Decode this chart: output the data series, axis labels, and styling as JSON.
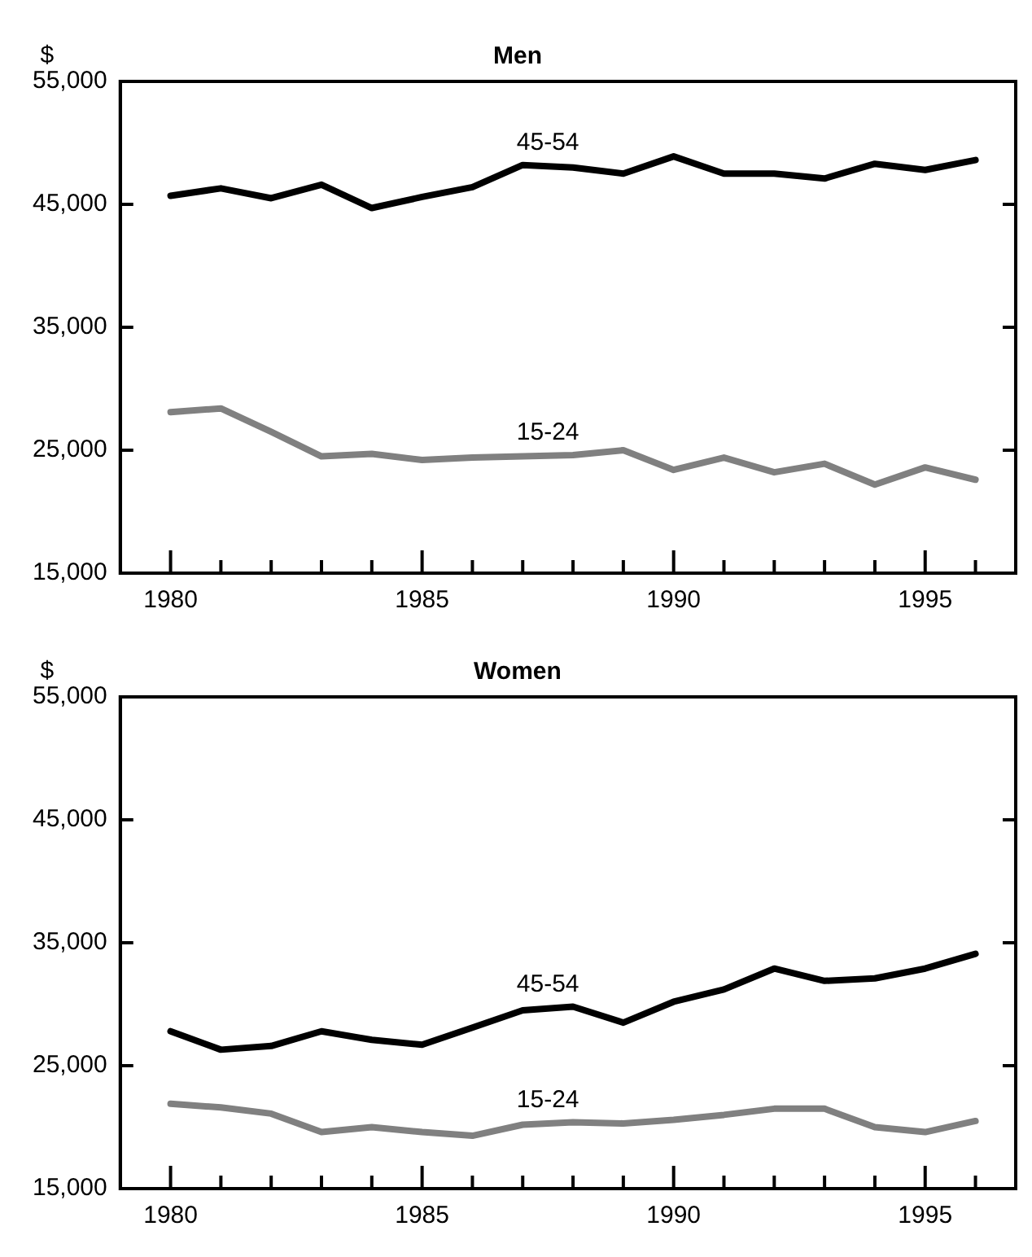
{
  "chart_data": [
    {
      "type": "line",
      "title": "Men",
      "ylabel": "$",
      "x": [
        1980,
        1981,
        1982,
        1983,
        1984,
        1985,
        1986,
        1987,
        1988,
        1989,
        1990,
        1991,
        1992,
        1993,
        1994,
        1995,
        1996
      ],
      "xlim": [
        1979,
        1996.8
      ],
      "xticks": [
        1980,
        {
          "value": 1981,
          "label": null
        },
        {
          "value": 1982,
          "label": null
        },
        {
          "value": 1983,
          "label": null
        },
        {
          "value": 1984,
          "label": null
        },
        1985,
        {
          "value": 1986,
          "label": null
        },
        {
          "value": 1987,
          "label": null
        },
        {
          "value": 1988,
          "label": null
        },
        {
          "value": 1989,
          "label": null
        },
        1990,
        {
          "value": 1991,
          "label": null
        },
        {
          "value": 1992,
          "label": null
        },
        {
          "value": 1993,
          "label": null
        },
        {
          "value": 1994,
          "label": null
        },
        1995,
        {
          "value": 1996,
          "label": null
        }
      ],
      "ylim": [
        15000,
        55000
      ],
      "yticks": [
        {
          "value": 15000,
          "label": "15,000"
        },
        {
          "value": 25000,
          "label": "25,000"
        },
        {
          "value": 35000,
          "label": "35,000"
        },
        {
          "value": 45000,
          "label": "45,000"
        },
        {
          "value": 55000,
          "label": "55,000"
        }
      ],
      "grid": false,
      "legend": false,
      "marker": "none",
      "line_style": "solid",
      "series": [
        {
          "name": "45-54",
          "color": "#000000",
          "values": [
            45700,
            46300,
            45500,
            46600,
            44700,
            45600,
            46400,
            48200,
            48000,
            47500,
            48900,
            47500,
            47500,
            47100,
            48300,
            47800,
            48600
          ]
        },
        {
          "name": "15-24",
          "color": "#808080",
          "values": [
            28100,
            28400,
            26500,
            24500,
            24700,
            24200,
            24400,
            24500,
            24600,
            25000,
            23400,
            24400,
            23200,
            23900,
            22200,
            23600,
            22600
          ]
        }
      ]
    },
    {
      "type": "line",
      "title": "Women",
      "ylabel": "$",
      "x": [
        1980,
        1981,
        1982,
        1983,
        1984,
        1985,
        1986,
        1987,
        1988,
        1989,
        1990,
        1991,
        1992,
        1993,
        1994,
        1995,
        1996
      ],
      "xlim": [
        1979,
        1996.8
      ],
      "xticks": [
        1980,
        {
          "value": 1981,
          "label": null
        },
        {
          "value": 1982,
          "label": null
        },
        {
          "value": 1983,
          "label": null
        },
        {
          "value": 1984,
          "label": null
        },
        1985,
        {
          "value": 1986,
          "label": null
        },
        {
          "value": 1987,
          "label": null
        },
        {
          "value": 1988,
          "label": null
        },
        {
          "value": 1989,
          "label": null
        },
        1990,
        {
          "value": 1991,
          "label": null
        },
        {
          "value": 1992,
          "label": null
        },
        {
          "value": 1993,
          "label": null
        },
        {
          "value": 1994,
          "label": null
        },
        1995,
        {
          "value": 1996,
          "label": null
        }
      ],
      "ylim": [
        15000,
        55000
      ],
      "yticks": [
        {
          "value": 15000,
          "label": "15,000"
        },
        {
          "value": 25000,
          "label": "25,000"
        },
        {
          "value": 35000,
          "label": "35,000"
        },
        {
          "value": 45000,
          "label": "45,000"
        },
        {
          "value": 55000,
          "label": "55,000"
        }
      ],
      "grid": false,
      "legend": false,
      "marker": "none",
      "line_style": "solid",
      "series": [
        {
          "name": "45-54",
          "color": "#000000",
          "values": [
            27800,
            26300,
            26600,
            27800,
            27100,
            26700,
            28100,
            29500,
            29800,
            28500,
            30200,
            31200,
            32900,
            31900,
            32100,
            32900,
            34100
          ]
        },
        {
          "name": "15-24",
          "color": "#808080",
          "values": [
            21900,
            21600,
            21100,
            19600,
            20000,
            19600,
            19300,
            20200,
            20400,
            20300,
            20600,
            21000,
            21500,
            21500,
            20000,
            19600,
            20500
          ]
        }
      ]
    }
  ]
}
